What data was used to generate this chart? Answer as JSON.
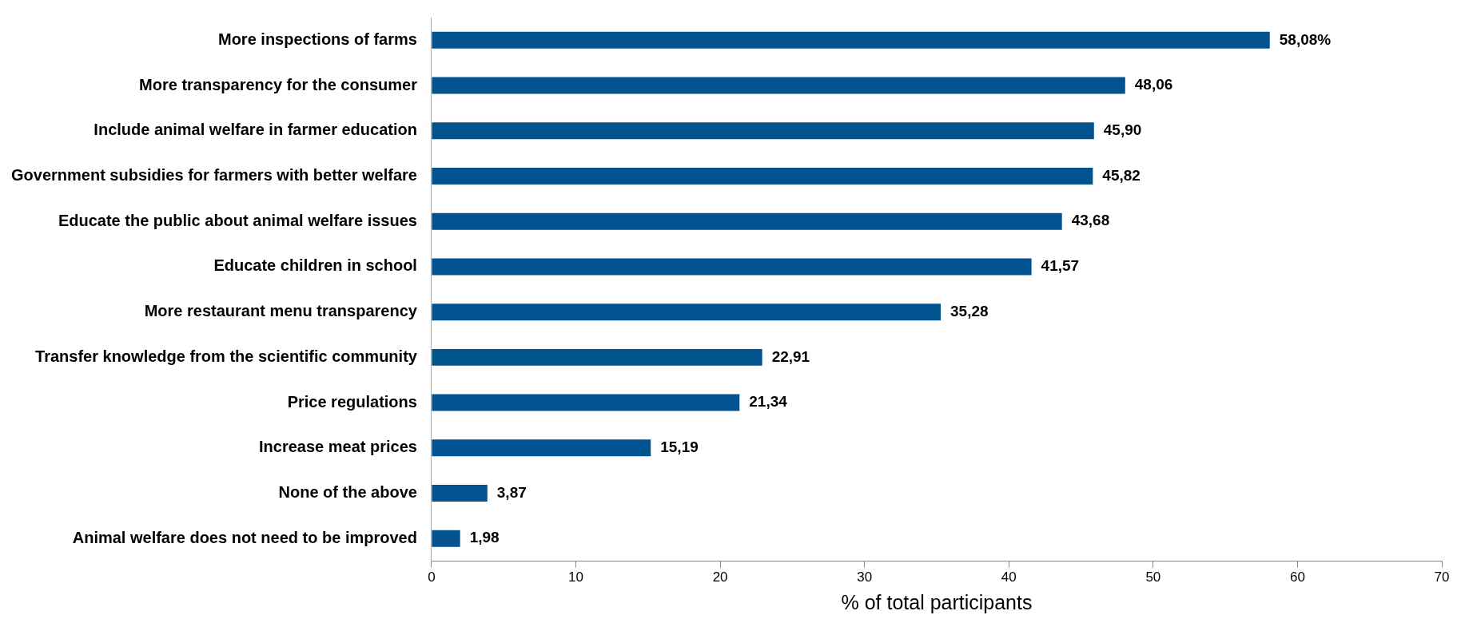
{
  "chart_data": {
    "type": "bar",
    "orientation": "horizontal",
    "xlabel": "% of total participants",
    "categories": [
      "More inspections of farms",
      "More transparency for the consumer",
      "Include animal welfare in farmer education",
      "Government subsidies for farmers with better welfare",
      "Educate the public about animal welfare issues",
      "Educate children in school",
      "More restaurant menu transparency",
      "Transfer knowledge from the scientific community",
      "Price regulations",
      "Increase meat prices",
      "None of the above",
      "Animal welfare does not need to be improved"
    ],
    "values": [
      58.08,
      48.06,
      45.9,
      45.82,
      43.68,
      41.57,
      35.28,
      22.91,
      21.34,
      15.19,
      3.87,
      1.98
    ],
    "value_labels": [
      "58,08%",
      "48,06",
      "45,90",
      "45,82",
      "43,68",
      "41,57",
      "35,28",
      "22,91",
      "21,34",
      "15,19",
      "3,87",
      "1,98"
    ],
    "color": "#02528f",
    "xlim": [
      0,
      70
    ],
    "xticks": [
      0,
      10,
      20,
      30,
      40,
      50,
      60,
      70
    ],
    "grid": false,
    "legend": false
  }
}
